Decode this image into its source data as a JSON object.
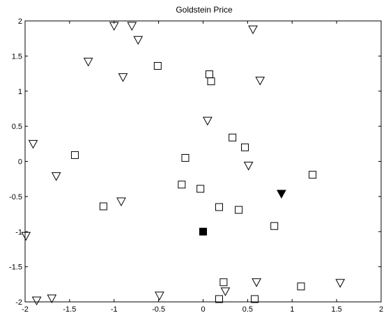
{
  "chart_data": {
    "type": "scatter",
    "title": "Goldstein Price",
    "xlabel": "",
    "ylabel": "",
    "xlim": [
      -2,
      2
    ],
    "ylim": [
      -2,
      2
    ],
    "xticks": [
      -2,
      -1.5,
      -1,
      -0.5,
      0,
      0.5,
      1,
      1.5,
      2
    ],
    "xtick_labels": [
      "-2",
      "-1.5",
      "-1",
      "-0.5",
      "0",
      "0.5",
      "1",
      "1.5",
      "2"
    ],
    "yticks": [
      -2,
      -1.5,
      -1,
      -0.5,
      0,
      0.5,
      1,
      1.5,
      2
    ],
    "ytick_labels": [
      "-2",
      "-1.5",
      "-1",
      "-0.5",
      "0",
      "0.5",
      "1",
      "1.5",
      "2"
    ],
    "grid": false,
    "legend": "none",
    "series": [
      {
        "marker": "triangle-down-open",
        "x": [
          -1.0,
          -0.8,
          -0.73,
          0.56,
          -1.29,
          -0.9,
          0.64,
          0.05,
          -1.91,
          0.51,
          -1.65,
          -0.92,
          -1.99,
          0.6,
          1.54,
          -0.49,
          0.25,
          -1.7,
          -1.87
        ],
        "y": [
          1.93,
          1.93,
          1.73,
          1.88,
          1.42,
          1.2,
          1.15,
          0.58,
          0.25,
          -0.06,
          -0.21,
          -0.57,
          -1.06,
          -1.72,
          -1.73,
          -1.91,
          -1.85,
          -1.95,
          -1.98
        ]
      },
      {
        "marker": "square-open",
        "x": [
          -0.51,
          0.07,
          0.09,
          0.33,
          0.47,
          -1.44,
          -0.2,
          1.23,
          -0.24,
          -0.03,
          -1.12,
          0.18,
          0.4,
          0.8,
          1.1,
          0.23,
          0.18,
          0.58
        ],
        "y": [
          1.36,
          1.24,
          1.14,
          0.34,
          0.2,
          0.09,
          0.05,
          -0.19,
          -0.33,
          -0.39,
          -0.64,
          -0.65,
          -0.69,
          -0.92,
          -1.78,
          -1.72,
          -1.96,
          -1.96
        ]
      },
      {
        "marker": "square-filled",
        "x": [
          0.0
        ],
        "y": [
          -1.0
        ]
      },
      {
        "marker": "triangle-down-filled",
        "x": [
          0.88
        ],
        "y": [
          -0.46
        ]
      }
    ]
  }
}
